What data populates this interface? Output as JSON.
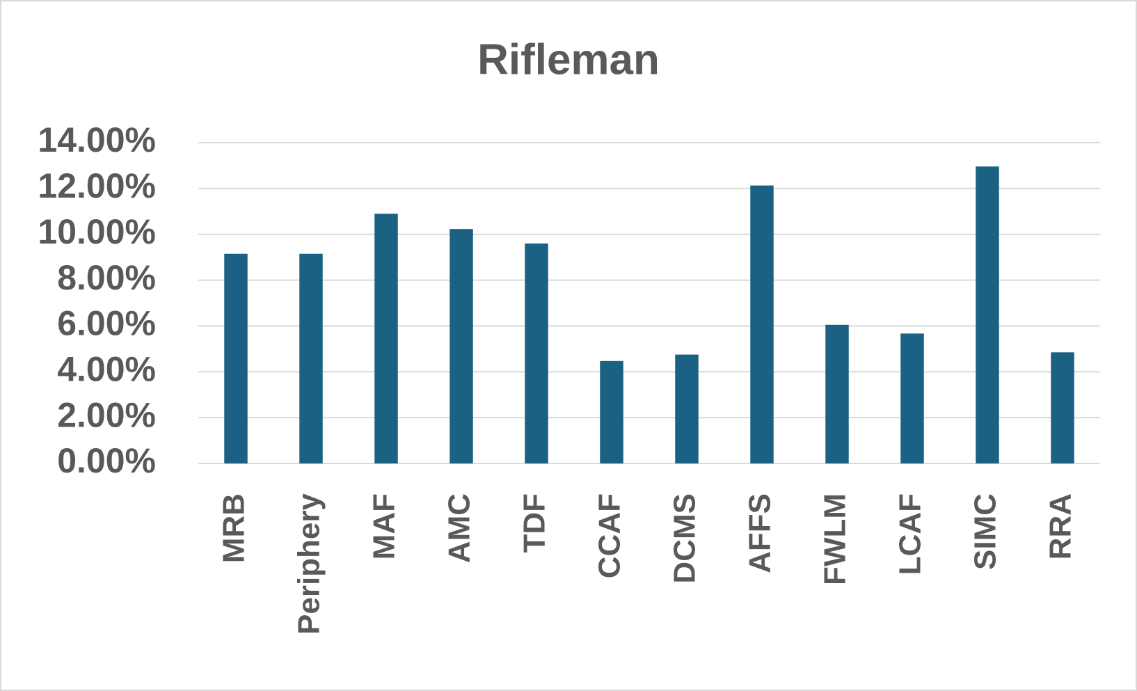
{
  "chart_data": {
    "type": "bar",
    "title": "Rifleman",
    "categories": [
      "MRB",
      "Periphery",
      "MAF",
      "AMC",
      "TDF",
      "CCAF",
      "DCMS",
      "AFFS",
      "FWLM",
      "LCAF",
      "SIMC",
      "RRA"
    ],
    "values": [
      9.15,
      9.15,
      10.9,
      10.23,
      9.6,
      4.47,
      4.75,
      12.13,
      6.05,
      5.67,
      12.96,
      4.85
    ],
    "color": "#1b6183",
    "ylim": [
      0,
      14
    ],
    "yticks": [
      {
        "value": 0,
        "label": "0.00%"
      },
      {
        "value": 2,
        "label": "2.00%"
      },
      {
        "value": 4,
        "label": "4.00%"
      },
      {
        "value": 6,
        "label": "6.00%"
      },
      {
        "value": 8,
        "label": "8.00%"
      },
      {
        "value": 10,
        "label": "10.00%"
      },
      {
        "value": 12,
        "label": "12.00%"
      },
      {
        "value": 14,
        "label": "14.00%"
      }
    ],
    "grid": true
  }
}
